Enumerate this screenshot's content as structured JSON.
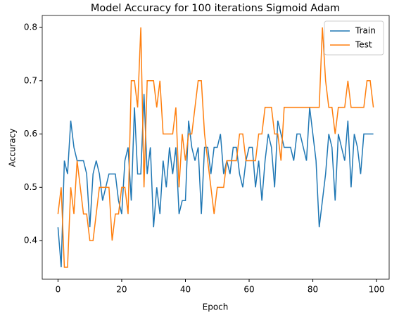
{
  "chart_data": {
    "type": "line",
    "title": "Model Accuracy for 100 iterations Sigmoid Adam",
    "xlabel": "Epoch",
    "ylabel": "Accuracy",
    "x": [
      0,
      1,
      2,
      3,
      4,
      5,
      6,
      7,
      8,
      9,
      10,
      11,
      12,
      13,
      14,
      15,
      16,
      17,
      18,
      19,
      20,
      21,
      22,
      23,
      24,
      25,
      26,
      27,
      28,
      29,
      30,
      31,
      32,
      33,
      34,
      35,
      36,
      37,
      38,
      39,
      40,
      41,
      42,
      43,
      44,
      45,
      46,
      47,
      48,
      49,
      50,
      51,
      52,
      53,
      54,
      55,
      56,
      57,
      58,
      59,
      60,
      61,
      62,
      63,
      64,
      65,
      66,
      67,
      68,
      69,
      70,
      71,
      72,
      73,
      74,
      75,
      76,
      77,
      78,
      79,
      80,
      81,
      82,
      83,
      84,
      85,
      86,
      87,
      88,
      89,
      90,
      91,
      92,
      93,
      94,
      95,
      96,
      97,
      98,
      99
    ],
    "series": [
      {
        "name": "Train",
        "color": "#1f77b4",
        "values": [
          0.425,
          0.35,
          0.55,
          0.525,
          0.625,
          0.575,
          0.55,
          0.55,
          0.55,
          0.525,
          0.425,
          0.525,
          0.55,
          0.525,
          0.475,
          0.5,
          0.525,
          0.525,
          0.525,
          0.475,
          0.45,
          0.55,
          0.575,
          0.475,
          0.65,
          0.525,
          0.525,
          0.675,
          0.525,
          0.575,
          0.425,
          0.5,
          0.45,
          0.55,
          0.5,
          0.575,
          0.525,
          0.575,
          0.45,
          0.475,
          0.475,
          0.625,
          0.575,
          0.55,
          0.575,
          0.45,
          0.575,
          0.575,
          0.525,
          0.575,
          0.575,
          0.6,
          0.525,
          0.55,
          0.525,
          0.575,
          0.575,
          0.525,
          0.5,
          0.55,
          0.575,
          0.575,
          0.5,
          0.55,
          0.475,
          0.55,
          0.6,
          0.575,
          0.5,
          0.625,
          0.6,
          0.575,
          0.575,
          0.575,
          0.55,
          0.6,
          0.6,
          0.575,
          0.55,
          0.65,
          0.6,
          0.55,
          0.425,
          0.475,
          0.525,
          0.6,
          0.575,
          0.475,
          0.6,
          0.575,
          0.55,
          0.625,
          0.5,
          0.6,
          0.575,
          0.525,
          0.6,
          0.6,
          0.6,
          0.6
        ]
      },
      {
        "name": "Test",
        "color": "#ff7f0e",
        "values": [
          0.45,
          0.5,
          0.35,
          0.35,
          0.5,
          0.45,
          0.55,
          0.5,
          0.45,
          0.45,
          0.4,
          0.4,
          0.45,
          0.5,
          0.5,
          0.5,
          0.5,
          0.4,
          0.45,
          0.45,
          0.5,
          0.5,
          0.45,
          0.7,
          0.7,
          0.65,
          0.8,
          0.5,
          0.7,
          0.7,
          0.7,
          0.65,
          0.7,
          0.6,
          0.6,
          0.6,
          0.6,
          0.65,
          0.5,
          0.6,
          0.55,
          0.6,
          0.6,
          0.65,
          0.7,
          0.7,
          0.6,
          0.55,
          0.5,
          0.45,
          0.5,
          0.5,
          0.5,
          0.55,
          0.55,
          0.55,
          0.55,
          0.6,
          0.6,
          0.55,
          0.55,
          0.55,
          0.55,
          0.6,
          0.6,
          0.65,
          0.65,
          0.65,
          0.6,
          0.6,
          0.55,
          0.65,
          0.65,
          0.65,
          0.65,
          0.65,
          0.65,
          0.65,
          0.65,
          0.65,
          0.65,
          0.65,
          0.65,
          0.8,
          0.7,
          0.65,
          0.65,
          0.6,
          0.65,
          0.65,
          0.65,
          0.7,
          0.65,
          0.65,
          0.65,
          0.65,
          0.65,
          0.7,
          0.7,
          0.65
        ]
      }
    ],
    "xlim": [
      -4.95,
      103.95
    ],
    "xticks": [
      0,
      20,
      40,
      60,
      80,
      100
    ],
    "ylim": [
      0.3275,
      0.8225
    ],
    "yticks": [
      0.4,
      0.5,
      0.6,
      0.7,
      0.8
    ],
    "legend": "upper right",
    "grid": false
  }
}
